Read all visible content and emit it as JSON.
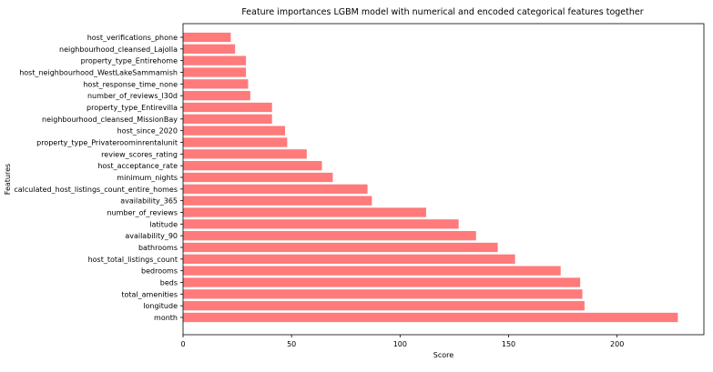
{
  "chart_data": {
    "type": "bar",
    "orientation": "horizontal",
    "title": "Feature importances  LGBM model with numerical and encoded categorical features together",
    "xlabel": "Score",
    "ylabel": "Features",
    "xlim": [
      0,
      240
    ],
    "xticks": [
      0,
      50,
      100,
      150,
      200
    ],
    "grid": false,
    "bar_color": "#ff7a7a",
    "categories": [
      "month",
      "longitude",
      "total_amenities",
      "beds",
      "bedrooms",
      "host_total_listings_count",
      "bathrooms",
      "availability_90",
      "latitude",
      "number_of_reviews",
      "availability_365",
      "calculated_host_listings_count_entire_homes",
      "minimum_nights",
      "host_acceptance_rate",
      "review_scores_rating",
      "property_type_Privateroominrentalunit",
      "host_since_2020",
      "neighbourhood_cleansed_MissionBay",
      "property_type_Entirevilla",
      "number_of_reviews_l30d",
      "host_response_time_none",
      "host_neighbourhood_WestLakeSammamish",
      "property_type_Entirehome",
      "neighbourhood_cleansed_Lajolla",
      "host_verifications_phone"
    ],
    "values": [
      228,
      185,
      184,
      183,
      174,
      153,
      145,
      135,
      127,
      112,
      87,
      85,
      69,
      64,
      57,
      48,
      47,
      41,
      41,
      31,
      30,
      29,
      29,
      24,
      22
    ]
  }
}
